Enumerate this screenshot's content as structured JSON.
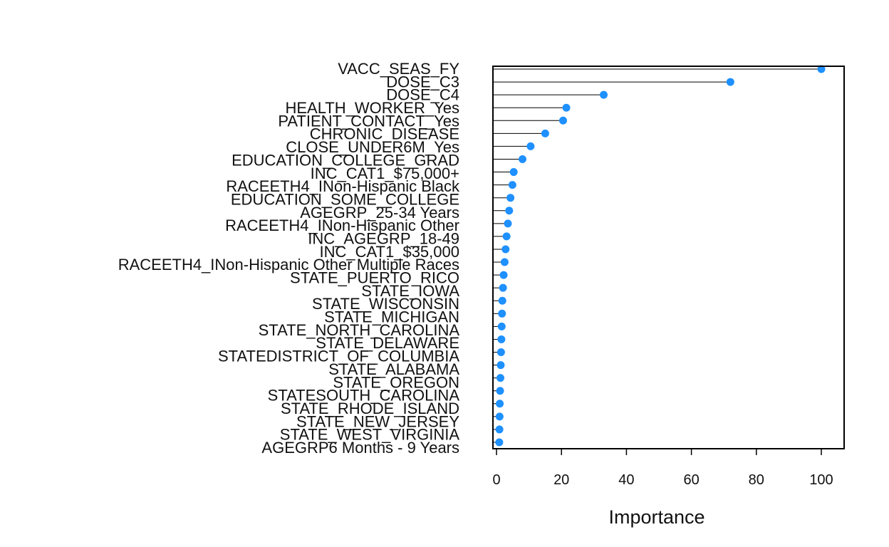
{
  "chart_data": {
    "type": "dotplot",
    "xlabel": "Importance",
    "xlim": [
      0,
      105
    ],
    "xticks": [
      0,
      20,
      40,
      60,
      80,
      100
    ],
    "point_color": "#1e90ff",
    "line_color": "#000000",
    "labels": [
      "VACC_SEAS_FY",
      "DOSE_C3",
      "DOSE_C4",
      "HEALTH_WORKER_Yes",
      "PATIENT_CONTACT_Yes",
      "CHRONIC_DISEASE",
      "CLOSE_UNDER6M_Yes",
      "EDUCATION_COLLEGE_GRAD",
      "INC_CAT1_$75,000+",
      "RACEETH4_INon-Hispanic Black",
      "EDUCATION_SOME_COLLEGE",
      "AGEGRP_25-34 Years",
      "RACEETH4_INon-Hispanic Other",
      "INC_AGEGRP_18-49",
      "INC_CAT1_$35,000",
      "RACEETH4_INon-Hispanic Other Multiple Races",
      "STATE_PUERTO_RICO",
      "STATE_IOWA",
      "STATE_WISCONSIN",
      "STATE_MICHIGAN",
      "STATE_NORTH_CAROLINA",
      "STATE_DELAWARE",
      "STATEDISTRICT_OF_COLUMBIA",
      "STATE_ALABAMA",
      "STATE_OREGON",
      "STATESOUTH_CAROLINA",
      "STATE_RHODE_ISLAND",
      "STATE_NEW_JERSEY",
      "STATE_WEST_VIRGINIA",
      "AGEGRP6 Months - 9 Years"
    ],
    "values": [
      100,
      72,
      33,
      21.5,
      20.5,
      15,
      10.5,
      8,
      5.3,
      4.9,
      4.3,
      3.9,
      3.5,
      3.1,
      2.8,
      2.5,
      2.2,
      2.0,
      1.8,
      1.7,
      1.6,
      1.5,
      1.4,
      1.3,
      1.2,
      1.1,
      1.0,
      0.95,
      0.9,
      0.85
    ]
  }
}
